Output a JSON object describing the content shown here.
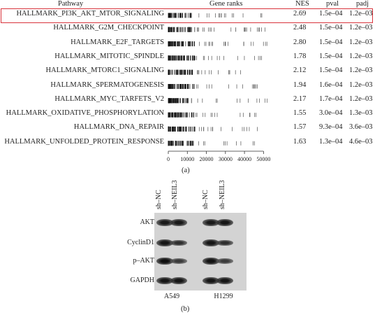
{
  "panel_a": {
    "headers": {
      "pathway": "Pathway",
      "gene_ranks": "Gene ranks",
      "nes": "NES",
      "pval": "pval",
      "padj": "padj"
    },
    "highlight_color": "#d9343c",
    "rows": [
      {
        "pathway": "HALLMARK_PI3K_AKT_MTOR_SIGNALING",
        "nes": "2.69",
        "pval": "1.5e–04",
        "padj": "1.2e–03",
        "highlighted": true
      },
      {
        "pathway": "HALLMARK_G2M_CHECKPOINT",
        "nes": "2.48",
        "pval": "1.5e–04",
        "padj": "1.2e–03"
      },
      {
        "pathway": "HALLMARK_E2F_TARGETS",
        "nes": "2.80",
        "pval": "1.5e–04",
        "padj": "1.2e–03"
      },
      {
        "pathway": "HALLMARK_MITOTIC_SPINDLE",
        "nes": "1.78",
        "pval": "1.5e–04",
        "padj": "1.2e–03"
      },
      {
        "pathway": "HALLMARK_MTORC1_SIGNALING",
        "nes": "2.12",
        "pval": "1.5e–04",
        "padj": "1.2e–03"
      },
      {
        "pathway": "HALLMARK_SPERMATOGENESIS",
        "nes": "1.94",
        "pval": "1.6e–04",
        "padj": "1.2e–03"
      },
      {
        "pathway": "HALLMARK_MYC_TARFETS_V2",
        "nes": "2.17",
        "pval": "1.7e–04",
        "padj": "1.2e–03"
      },
      {
        "pathway": "HALLMARK_OXIDATIVE_PHOSPHORYLATION",
        "nes": "1.55",
        "pval": "3.0e–04",
        "padj": "1.3e–03"
      },
      {
        "pathway": "HALLMARK_DNA_REPAIR",
        "nes": "1.57",
        "pval": "9.3e–04",
        "padj": "3.6e–03"
      },
      {
        "pathway": "HALLMARK_UNFOLDED_PROTEIN_RESPONSE",
        "nes": "1.63",
        "pval": "1.3e–04",
        "padj": "4.6e–03"
      }
    ],
    "axis": {
      "min": 0,
      "max": 55000,
      "ticks": [
        "0",
        "10000",
        "20000",
        "30000",
        "40000",
        "50000"
      ],
      "tick_values": [
        0,
        10000,
        20000,
        30000,
        40000,
        50000
      ]
    },
    "caption": "(a)"
  },
  "panel_b": {
    "lanes": [
      "sh–NC",
      "sh–NEIL3",
      "sh–NC",
      "sh–NEIL3"
    ],
    "proteins": [
      {
        "name": "AKT",
        "intensity": [
          0.8,
          0.8,
          0.8,
          0.85
        ]
      },
      {
        "name": "CyclinD1",
        "intensity": [
          0.85,
          0.55,
          0.85,
          0.55
        ]
      },
      {
        "name": "p–AKT",
        "intensity": [
          0.95,
          0.4,
          0.9,
          0.4
        ]
      },
      {
        "name": "GAPDH",
        "intensity": [
          0.85,
          0.85,
          0.85,
          0.85
        ]
      }
    ],
    "cell_lines": [
      "A549",
      "H1299"
    ],
    "caption": "(b)"
  }
}
